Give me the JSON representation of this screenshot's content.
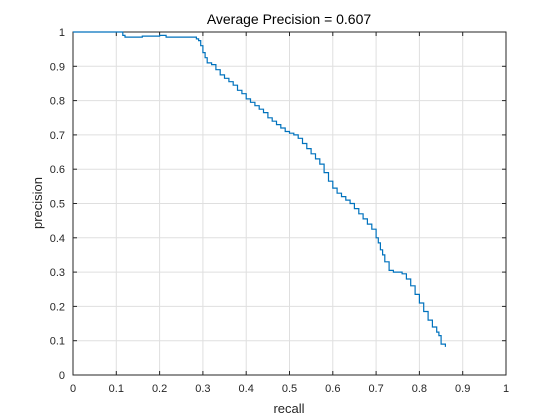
{
  "chart_data": {
    "type": "line",
    "title": "Average Precision = 0.607",
    "xlabel": "recall",
    "ylabel": "precision",
    "xlim": [
      0,
      1
    ],
    "ylim": [
      0,
      1
    ],
    "xticks": [
      "0",
      "0.1",
      "0.2",
      "0.3",
      "0.4",
      "0.5",
      "0.6",
      "0.7",
      "0.8",
      "0.9",
      "1"
    ],
    "yticks": [
      "0",
      "0.1",
      "0.2",
      "0.3",
      "0.4",
      "0.5",
      "0.6",
      "0.7",
      "0.8",
      "0.9",
      "1"
    ],
    "grid": true,
    "legend": "none",
    "colors": {
      "series": "#0072bd",
      "grid": "#dfdfdf",
      "axis": "#262626"
    },
    "series": [
      {
        "x": [
          0.0,
          0.11,
          0.115,
          0.12,
          0.16,
          0.2,
          0.21,
          0.215,
          0.25,
          0.28,
          0.285,
          0.29,
          0.295,
          0.3,
          0.305,
          0.31,
          0.32,
          0.33,
          0.34,
          0.35,
          0.36,
          0.37,
          0.38,
          0.39,
          0.4,
          0.41,
          0.42,
          0.43,
          0.44,
          0.45,
          0.46,
          0.47,
          0.48,
          0.49,
          0.5,
          0.51,
          0.52,
          0.53,
          0.54,
          0.55,
          0.56,
          0.57,
          0.58,
          0.59,
          0.6,
          0.61,
          0.62,
          0.63,
          0.64,
          0.65,
          0.66,
          0.67,
          0.68,
          0.69,
          0.7,
          0.705,
          0.71,
          0.715,
          0.72,
          0.73,
          0.74,
          0.75,
          0.755,
          0.76,
          0.77,
          0.78,
          0.79,
          0.8,
          0.81,
          0.82,
          0.83,
          0.84,
          0.845,
          0.85,
          0.86
        ],
        "y": [
          1.0,
          1.0,
          0.99,
          0.985,
          0.988,
          0.99,
          0.99,
          0.985,
          0.985,
          0.985,
          0.98,
          0.975,
          0.96,
          0.94,
          0.925,
          0.91,
          0.905,
          0.89,
          0.875,
          0.865,
          0.855,
          0.845,
          0.83,
          0.82,
          0.805,
          0.795,
          0.785,
          0.775,
          0.765,
          0.75,
          0.74,
          0.73,
          0.72,
          0.71,
          0.705,
          0.7,
          0.69,
          0.675,
          0.66,
          0.645,
          0.63,
          0.615,
          0.59,
          0.565,
          0.545,
          0.53,
          0.52,
          0.51,
          0.5,
          0.485,
          0.47,
          0.455,
          0.44,
          0.425,
          0.4,
          0.385,
          0.365,
          0.35,
          0.33,
          0.305,
          0.3,
          0.3,
          0.3,
          0.295,
          0.28,
          0.26,
          0.235,
          0.21,
          0.185,
          0.16,
          0.14,
          0.125,
          0.115,
          0.09,
          0.082
        ]
      }
    ]
  }
}
